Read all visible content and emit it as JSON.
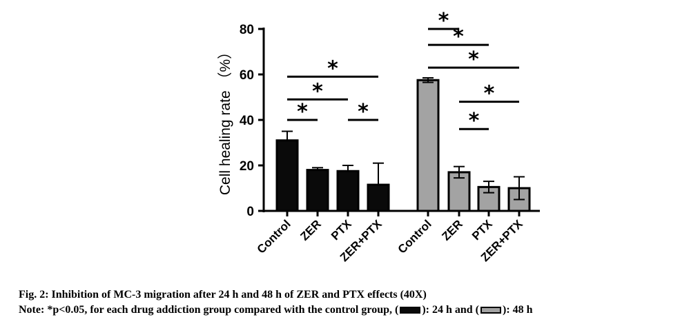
{
  "chart_data": {
    "type": "bar",
    "ylabel": "Cell healing rate （%）",
    "ylim": [
      0,
      80
    ],
    "yticks": [
      0,
      20,
      40,
      60,
      80
    ],
    "groups": [
      {
        "name": "24 h",
        "color": "#0a0a0a",
        "categories": [
          "Control",
          "ZER",
          "PTX",
          "ZER+PTX"
        ],
        "values": [
          31,
          18,
          17.5,
          11.5
        ],
        "errors": [
          4,
          1,
          2.5,
          9.5
        ]
      },
      {
        "name": "48 h",
        "color": "#a3a3a3",
        "categories": [
          "Control",
          "ZER",
          "PTX",
          "ZER+PTX"
        ],
        "values": [
          57.5,
          17,
          10.5,
          10
        ],
        "errors": [
          1,
          2.5,
          2.5,
          5
        ]
      }
    ],
    "significance": [
      {
        "group": 0,
        "from": 0,
        "to": 1,
        "y": 40,
        "label": "*"
      },
      {
        "group": 0,
        "from": 2,
        "to": 3,
        "y": 40,
        "label": "*"
      },
      {
        "group": 0,
        "from": 0,
        "to": 2,
        "y": 49,
        "label": "*"
      },
      {
        "group": 0,
        "from": 0,
        "to": 3,
        "y": 59,
        "label": "*"
      },
      {
        "group": 1,
        "from": 0,
        "to": 1,
        "y": 80,
        "label": "*"
      },
      {
        "group": 1,
        "from": 0,
        "to": 2,
        "y": 73,
        "label": "*"
      },
      {
        "group": 1,
        "from": 0,
        "to": 3,
        "y": 63,
        "label": "*"
      },
      {
        "group": 1,
        "from": 1,
        "to": 3,
        "y": 48,
        "label": "*"
      },
      {
        "group": 1,
        "from": 1,
        "to": 2,
        "y": 36,
        "label": "*"
      }
    ]
  },
  "caption": {
    "title": "Fig. 2: Inhibition of MC-3 migration after 24 h and 48 h of ZER and PTX effects (40X)",
    "note_prefix": "Note: *p<0.05, for each drug addiction group compared with the control group, (",
    "note_mid": "): 24 h and (",
    "note_suffix": "): 48 h"
  }
}
